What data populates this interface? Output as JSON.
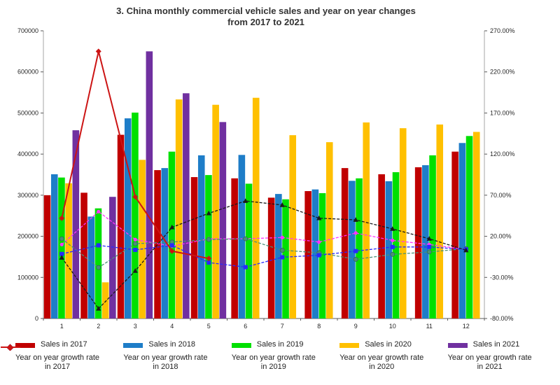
{
  "title": {
    "line1": "3. China monthly commercial vehicle sales and year on year changes",
    "line2": "from 2017 to 2021"
  },
  "chart_data": {
    "type": "combo (grouped bars + lines, dual axis)",
    "title": "3. China monthly commercial vehicle sales and year on year changes from 2017 to 2021",
    "categories": [
      "1",
      "2",
      "3",
      "4",
      "5",
      "6",
      "7",
      "8",
      "9",
      "10",
      "11",
      "12"
    ],
    "left_axis": {
      "min": 0,
      "max": 700000,
      "step": 100000,
      "tick_labels": [
        "0",
        "100000",
        "200000",
        "300000",
        "400000",
        "500000",
        "600000",
        "700000"
      ]
    },
    "right_axis": {
      "min": -80,
      "max": 270,
      "step": 50,
      "tick_labels": [
        "-80.00%",
        "-30.00%",
        "20.00%",
        "70.00%",
        "120.00%",
        "170.00%",
        "220.00%",
        "270.00%"
      ]
    },
    "bar_series": [
      {
        "name": "Sales in 2017",
        "color": "#c00000",
        "values": [
          300000,
          306000,
          447000,
          361000,
          344000,
          341000,
          294000,
          310000,
          366000,
          351000,
          368000,
          406000
        ]
      },
      {
        "name": "Sales in 2018",
        "color": "#1e7dc8",
        "values": [
          351000,
          248000,
          487000,
          366000,
          397000,
          398000,
          303000,
          314000,
          335000,
          334000,
          373000,
          427000
        ]
      },
      {
        "name": "Sales in 2019",
        "color": "#00e000",
        "values": [
          343000,
          268000,
          501000,
          406000,
          349000,
          328000,
          290000,
          305000,
          341000,
          356000,
          397000,
          444000
        ]
      },
      {
        "name": "Sales in 2020",
        "color": "#ffc000",
        "values": [
          329000,
          88000,
          386000,
          533000,
          520000,
          537000,
          446000,
          429000,
          477000,
          463000,
          472000,
          454000
        ]
      },
      {
        "name": "Sales in 2021",
        "color": "#7030a0",
        "values": [
          458000,
          296000,
          650000,
          548000,
          478000,
          null,
          null,
          null,
          null,
          null,
          null,
          null
        ]
      }
    ],
    "line_series": [
      {
        "name": "Year on year growth rate in 2017",
        "label1": "Year on year growth rate",
        "label2": "in 2017",
        "color": "#ff33ff",
        "marker": "dot",
        "style": "dashed",
        "values": [
          10,
          50,
          16,
          8,
          17,
          17,
          18.5,
          13,
          24,
          15,
          10,
          4
        ]
      },
      {
        "name": "Year on year growth rate in 2018",
        "label1": "Year on year growth rate",
        "label2": "in 2018",
        "color": "#4a9178",
        "marker": "circle",
        "style": "dashed",
        "values": [
          17,
          -18,
          11,
          13,
          16,
          17,
          3,
          0,
          -8,
          -2,
          1,
          5
        ]
      },
      {
        "name": "Year on year growth rate in 2019",
        "label1": "Year on year growth rate",
        "label2": "in 2019",
        "color": "#2929ff",
        "marker": "square",
        "style": "dashed",
        "values": [
          -1.5,
          9,
          3.5,
          9,
          -12,
          -17.5,
          -5.5,
          -3,
          2,
          7,
          7,
          4
        ]
      },
      {
        "name": "Year on year growth rate in 2020",
        "label1": "Year on year growth rate",
        "label2": "in 2020",
        "color": "#1a1a1a",
        "marker": "triangle",
        "style": "dashed",
        "values": [
          -6,
          -68,
          -22,
          31,
          48,
          63,
          58,
          42,
          40,
          29,
          17,
          3
        ]
      },
      {
        "name": "Year on year growth rate in 2021",
        "label1": "Year on year growth rate",
        "label2": "in 2021",
        "color": "#cc1414",
        "marker": "diamond",
        "style": "solid",
        "values": [
          42,
          245,
          68,
          2,
          -7,
          null,
          null,
          null,
          null,
          null,
          null,
          null
        ]
      }
    ],
    "layout": {
      "gridlines": false,
      "legend_position": "bottom",
      "axis_color": "#a6a6a6",
      "baseline_color": "#595959"
    }
  }
}
